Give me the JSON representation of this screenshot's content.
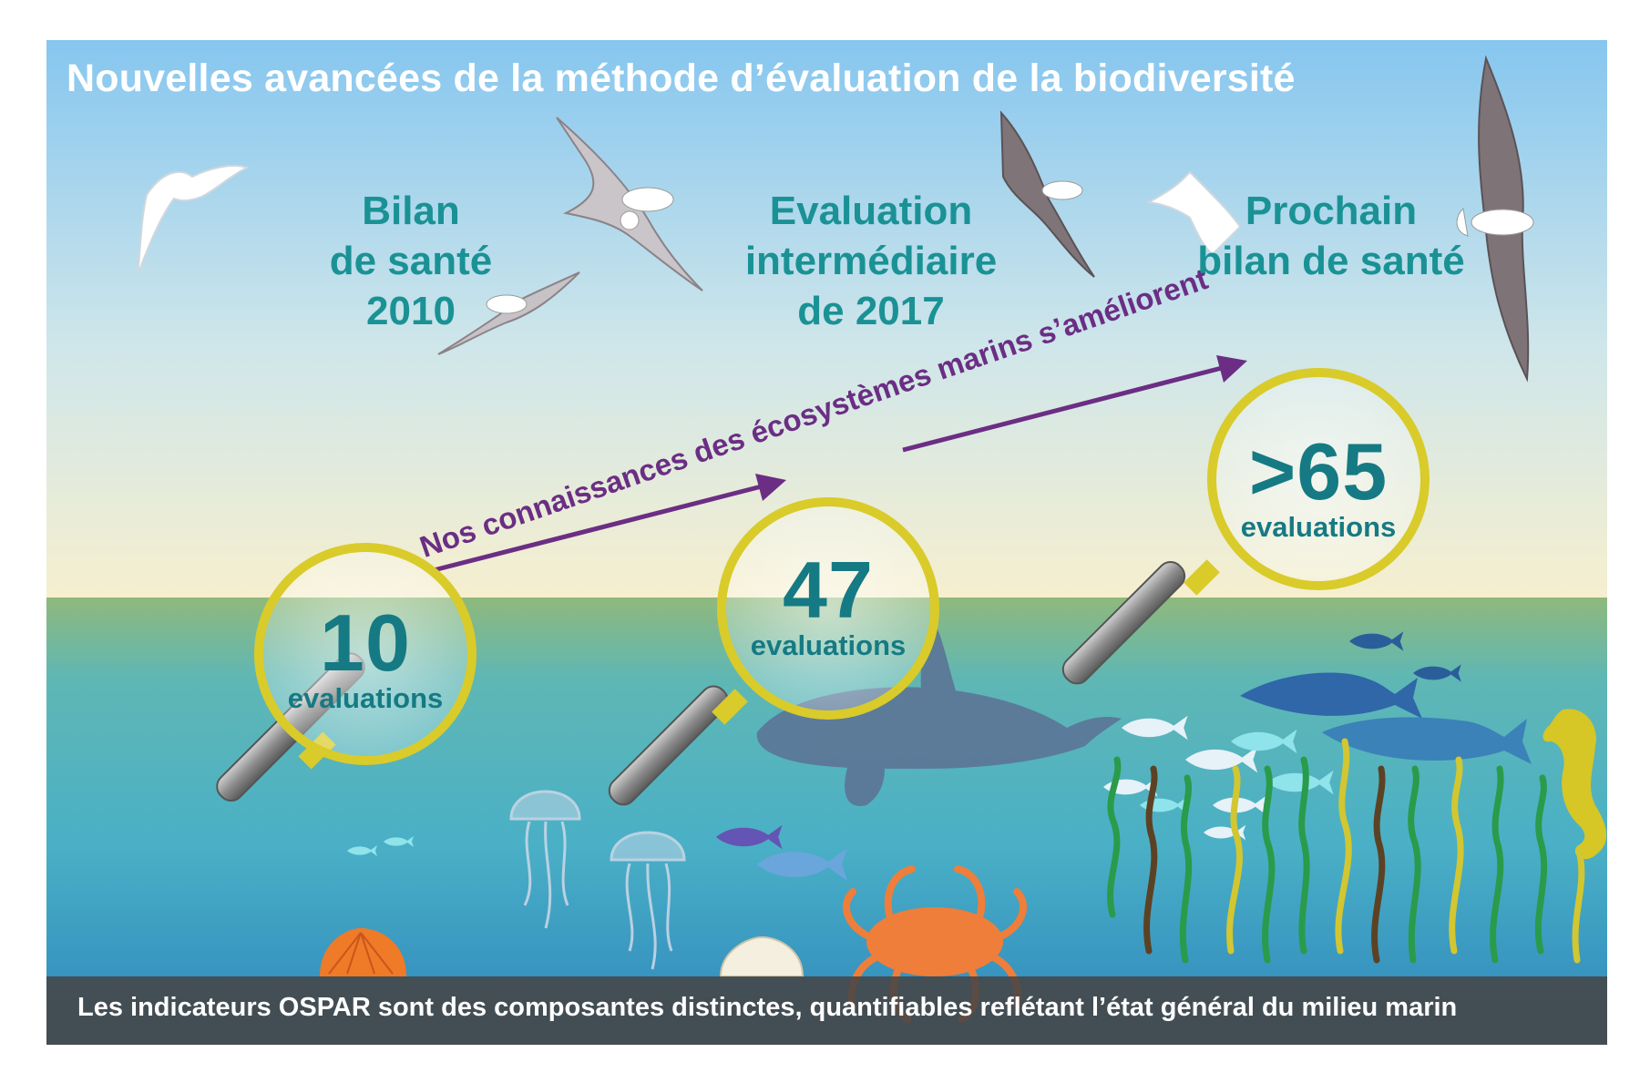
{
  "title": "Nouvelles avancées de la méthode d’évaluation de la biodiversité",
  "phases": [
    {
      "lines": [
        "Bilan",
        "de santé",
        "2010"
      ]
    },
    {
      "lines": [
        "Evaluation",
        "intermédiaire",
        "de 2017"
      ]
    },
    {
      "lines": [
        "Prochain",
        "bilan de santé"
      ]
    }
  ],
  "magnifiers": [
    {
      "count": "10",
      "unit": "evaluations"
    },
    {
      "count": "47",
      "unit": "evaluations"
    },
    {
      "count": ">65",
      "unit": "evaluations"
    }
  ],
  "arrow_label": "Nos connaissances des écosystèmes marins s’améliorent",
  "footer": "Les indicateurs OSPAR sont des composantes distinctes, quantifiables reflétant l’état général du milieu marin",
  "colors": {
    "sky_top": "#8fcbee",
    "horizon": "#f3eccd",
    "sea_surface": "#8fb97c",
    "sea_deep": "#3a97c2",
    "heading_teal": "#1a9295",
    "lens_ring": "#d9cb2a",
    "arrow_purple": "#6b2e84",
    "footer_band": "#464646"
  },
  "icons": [
    "gull-icon",
    "albatross-icon",
    "orca-icon",
    "shark-icon",
    "fish-icon",
    "jellyfish-icon",
    "seahorse-icon",
    "crab-icon",
    "scallop-icon",
    "kelp-icon",
    "magnifier-icon"
  ]
}
